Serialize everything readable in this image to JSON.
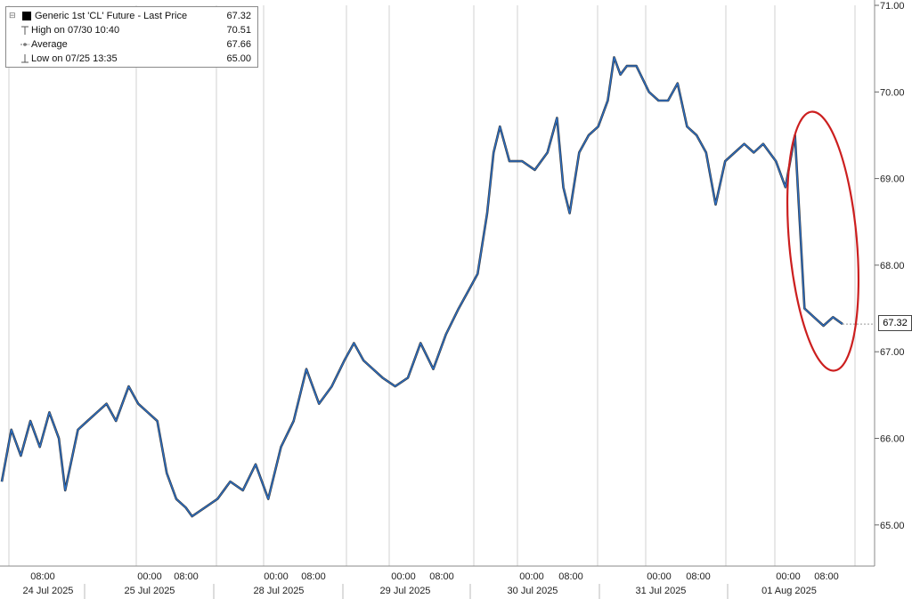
{
  "chart_data": {
    "type": "line",
    "legend": {
      "title": "Generic 1st 'CL' Future - Last Price",
      "last_price": "67.32",
      "rows": [
        {
          "label": "High on 07/30 10:40",
          "value": "70.51",
          "icon": "high-marker-icon"
        },
        {
          "label": "Average",
          "value": "67.66",
          "icon": "average-marker-icon"
        },
        {
          "label": "Low on 07/25 13:35",
          "value": "65.00",
          "icon": "low-marker-icon"
        }
      ]
    },
    "y_ticks": [
      "71.00",
      "70.00",
      "69.00",
      "68.00",
      "67.00",
      "66.00",
      "65.00"
    ],
    "ylim": [
      64.5,
      71.0
    ],
    "last_value_tag": "67.32",
    "time_ticks": [
      "08:00",
      "00:00",
      "08:00",
      "00:00",
      "08:00",
      "00:00",
      "08:00",
      "00:00",
      "08:00",
      "00:00",
      "08:00",
      "00:00",
      "08:00"
    ],
    "date_labels": [
      "24 Jul 2025",
      "25 Jul 2025",
      "28 Jul 2025",
      "29 Jul 2025",
      "30 Jul 2025",
      "31 Jul 2025",
      "01 Aug 2025"
    ],
    "series": [
      {
        "x": [
          0,
          0.15,
          0.3,
          0.45,
          0.6,
          0.75,
          0.9,
          1.0,
          1.2,
          1.35,
          1.5,
          1.65,
          1.8,
          2.0,
          2.15,
          2.3,
          2.45,
          2.6,
          2.75,
          2.9,
          3.0,
          3.2,
          3.4,
          3.6,
          3.8,
          4.0,
          4.2,
          4.4,
          4.6,
          4.8,
          5.0,
          5.2,
          5.4,
          5.55,
          5.7,
          5.85,
          6.0,
          6.2,
          6.4,
          6.6,
          6.8,
          7.0,
          7.2,
          7.35,
          7.5,
          7.65,
          7.75,
          7.85,
          8.0,
          8.2,
          8.4,
          8.6,
          8.75,
          8.85,
          8.95,
          9.1,
          9.25,
          9.4,
          9.55,
          9.65,
          9.75,
          9.85,
          10.0,
          10.2,
          10.35,
          10.5,
          10.65,
          10.8,
          10.95,
          11.1,
          11.25,
          11.4,
          11.55,
          11.7,
          11.85,
          12.0,
          12.2,
          12.35,
          12.5,
          12.65,
          12.8,
          12.95,
          13.1,
          13.25
        ],
        "y": [
          65.5,
          66.1,
          65.8,
          66.2,
          65.9,
          66.3,
          66.0,
          65.4,
          66.1,
          66.2,
          66.3,
          66.4,
          66.2,
          66.6,
          66.4,
          66.3,
          66.2,
          65.6,
          65.3,
          65.2,
          65.1,
          65.2,
          65.3,
          65.5,
          65.4,
          65.7,
          65.3,
          65.9,
          66.2,
          66.8,
          66.4,
          66.6,
          66.9,
          67.1,
          66.9,
          66.8,
          66.7,
          66.6,
          66.7,
          67.1,
          66.8,
          67.2,
          67.5,
          67.7,
          67.9,
          68.6,
          69.3,
          69.6,
          69.2,
          69.2,
          69.1,
          69.3,
          69.7,
          68.9,
          68.6,
          69.3,
          69.5,
          69.6,
          69.9,
          70.4,
          70.2,
          70.3,
          70.3,
          70.0,
          69.9,
          69.9,
          70.1,
          69.6,
          69.5,
          69.3,
          68.7,
          69.2,
          69.3,
          69.4,
          69.3,
          69.4,
          69.2,
          68.9,
          69.5,
          67.5,
          67.4,
          67.3,
          67.4,
          67.32
        ]
      }
    ],
    "colors": {
      "line": "#2b6fc6",
      "line_shadow": "#111111",
      "grid": "#d0d0d0",
      "annotation": "#cc1f1f"
    }
  }
}
